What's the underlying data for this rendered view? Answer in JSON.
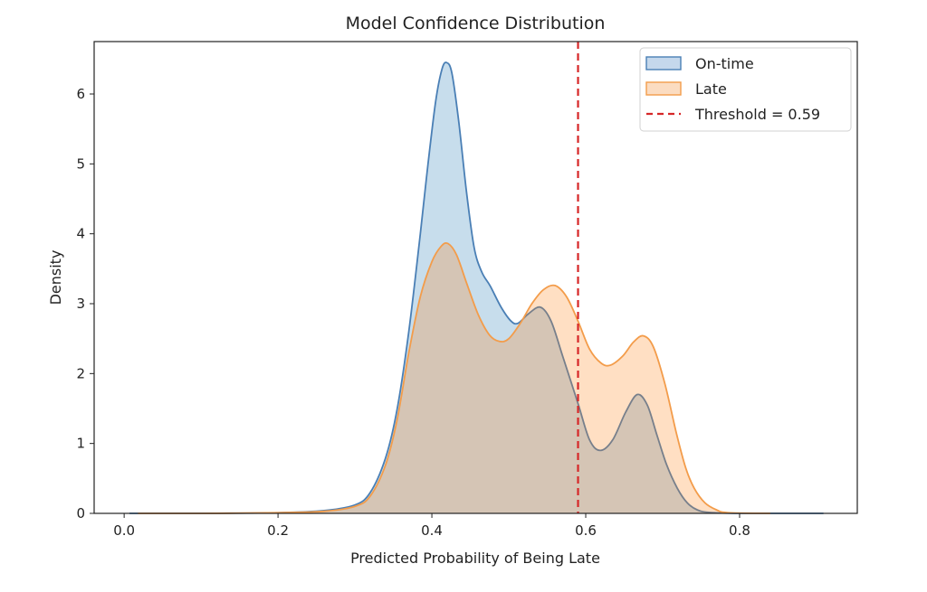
{
  "chart_data": {
    "type": "area",
    "title": "Model Confidence Distribution",
    "xlabel": "Predicted Probability of Being Late",
    "ylabel": "Density",
    "xlim": [
      -0.039,
      0.953
    ],
    "ylim": [
      0,
      6.75
    ],
    "xticks": [
      0.0,
      0.2,
      0.4,
      0.6,
      0.8
    ],
    "xtick_labels": [
      "0.0",
      "0.2",
      "0.4",
      "0.6",
      "0.8"
    ],
    "yticks": [
      0,
      1,
      2,
      3,
      4,
      5,
      6
    ],
    "ytick_labels": [
      "0",
      "1",
      "2",
      "3",
      "4",
      "5",
      "6"
    ],
    "grid": false,
    "legend_position": "top-right",
    "series": [
      {
        "name": "On-time",
        "kind": "kde",
        "line_color": "#4a7fb5",
        "fill_color": "#1f77b4",
        "fill_opacity": 0.25,
        "points": [
          [
            0.007,
            0.0
          ],
          [
            0.1,
            0.0
          ],
          [
            0.2,
            0.01
          ],
          [
            0.26,
            0.04
          ],
          [
            0.3,
            0.12
          ],
          [
            0.32,
            0.3
          ],
          [
            0.34,
            0.8
          ],
          [
            0.355,
            1.5
          ],
          [
            0.37,
            2.6
          ],
          [
            0.385,
            4.0
          ],
          [
            0.395,
            5.0
          ],
          [
            0.405,
            5.9
          ],
          [
            0.413,
            6.35
          ],
          [
            0.419,
            6.45
          ],
          [
            0.426,
            6.3
          ],
          [
            0.435,
            5.6
          ],
          [
            0.445,
            4.6
          ],
          [
            0.455,
            3.8
          ],
          [
            0.465,
            3.45
          ],
          [
            0.476,
            3.25
          ],
          [
            0.49,
            2.95
          ],
          [
            0.503,
            2.75
          ],
          [
            0.512,
            2.72
          ],
          [
            0.525,
            2.85
          ],
          [
            0.541,
            2.95
          ],
          [
            0.555,
            2.75
          ],
          [
            0.57,
            2.25
          ],
          [
            0.59,
            1.57
          ],
          [
            0.605,
            1.05
          ],
          [
            0.619,
            0.9
          ],
          [
            0.635,
            1.05
          ],
          [
            0.652,
            1.45
          ],
          [
            0.667,
            1.7
          ],
          [
            0.68,
            1.55
          ],
          [
            0.692,
            1.14
          ],
          [
            0.705,
            0.7
          ],
          [
            0.719,
            0.36
          ],
          [
            0.732,
            0.15
          ],
          [
            0.745,
            0.05
          ],
          [
            0.76,
            0.015
          ],
          [
            0.8,
            0.0
          ],
          [
            0.909,
            0.0
          ]
        ]
      },
      {
        "name": "Late",
        "kind": "kde",
        "line_color": "#f39c4a",
        "fill_color": "#ff7f0e",
        "fill_opacity": 0.25,
        "points": [
          [
            0.018,
            0.0
          ],
          [
            0.1,
            0.0
          ],
          [
            0.2,
            0.01
          ],
          [
            0.26,
            0.03
          ],
          [
            0.3,
            0.1
          ],
          [
            0.32,
            0.25
          ],
          [
            0.34,
            0.7
          ],
          [
            0.355,
            1.35
          ],
          [
            0.37,
            2.3
          ],
          [
            0.385,
            3.1
          ],
          [
            0.4,
            3.6
          ],
          [
            0.412,
            3.82
          ],
          [
            0.421,
            3.86
          ],
          [
            0.432,
            3.7
          ],
          [
            0.445,
            3.3
          ],
          [
            0.46,
            2.85
          ],
          [
            0.475,
            2.55
          ],
          [
            0.488,
            2.46
          ],
          [
            0.5,
            2.5
          ],
          [
            0.515,
            2.72
          ],
          [
            0.53,
            3.0
          ],
          [
            0.545,
            3.2
          ],
          [
            0.56,
            3.26
          ],
          [
            0.575,
            3.1
          ],
          [
            0.59,
            2.75
          ],
          [
            0.605,
            2.35
          ],
          [
            0.62,
            2.15
          ],
          [
            0.632,
            2.12
          ],
          [
            0.648,
            2.25
          ],
          [
            0.662,
            2.45
          ],
          [
            0.675,
            2.54
          ],
          [
            0.688,
            2.38
          ],
          [
            0.703,
            1.85
          ],
          [
            0.718,
            1.14
          ],
          [
            0.73,
            0.65
          ],
          [
            0.741,
            0.36
          ],
          [
            0.755,
            0.15
          ],
          [
            0.77,
            0.05
          ],
          [
            0.785,
            0.01
          ],
          [
            0.84,
            0.0
          ]
        ]
      }
    ],
    "annotations": [
      {
        "type": "vline",
        "x": 0.59,
        "label": "Threshold = 0.59",
        "color": "#d62728",
        "style": "dashed"
      }
    ],
    "legend": [
      {
        "label": "On-time",
        "kind": "patch",
        "edge": "#4a7fb5",
        "face": "#c5d8ec"
      },
      {
        "label": "Late",
        "kind": "patch",
        "edge": "#f39c4a",
        "face": "#fbdcc1"
      },
      {
        "label": "Threshold = 0.59",
        "kind": "dashed-line",
        "color": "#d62728"
      }
    ]
  }
}
